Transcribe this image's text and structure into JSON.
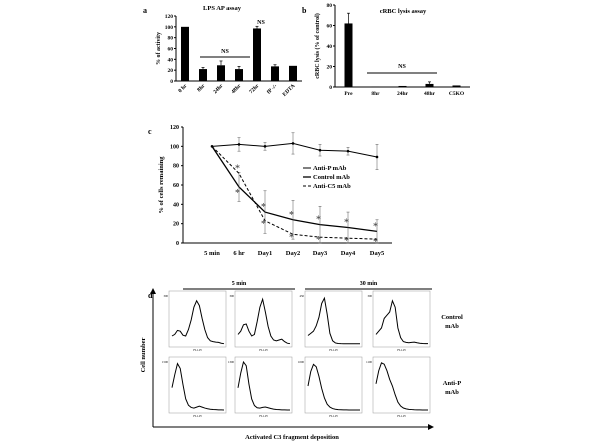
{
  "chart_data": [
    {
      "panel": "a",
      "type": "bar",
      "title": "LPS AP assay",
      "ylabel": "% of activity",
      "ylim": [
        0,
        120
      ],
      "yticks": [
        0,
        20,
        40,
        60,
        80,
        100,
        120
      ],
      "categories": [
        "0 hr",
        "8hr",
        "24hr",
        "48hr",
        "72hr",
        "fP -/-",
        "EDTA"
      ],
      "values": [
        100,
        22,
        29,
        22,
        97,
        27,
        28
      ],
      "errors": [
        0,
        3,
        8,
        5,
        4,
        3,
        0
      ],
      "annotations": [
        "NS",
        "NS"
      ]
    },
    {
      "panel": "b",
      "type": "bar",
      "title": "cRBC lysis assay",
      "ylabel": "cRBC lysis (% of control)",
      "ylim": [
        0,
        80
      ],
      "yticks": [
        0,
        20,
        40,
        60,
        80
      ],
      "categories": [
        "Pre",
        "8hr",
        "24hr",
        "48hr",
        "C5KO"
      ],
      "values": [
        62,
        0.5,
        1,
        3,
        1.5
      ],
      "errors": [
        10,
        0,
        0,
        2,
        0
      ],
      "annotations": [
        "NS"
      ]
    },
    {
      "panel": "c",
      "type": "line",
      "ylabel": "% of cells remaining",
      "ylim": [
        0,
        120
      ],
      "yticks": [
        0,
        20,
        40,
        60,
        80,
        100,
        120
      ],
      "categories": [
        "5 min",
        "6 hr",
        "Day1",
        "Day2",
        "Day3",
        "Day4",
        "Day5"
      ],
      "series": [
        {
          "name": "Anti-P mAb",
          "values": [
            100,
            102,
            100,
            103,
            96,
            95,
            89
          ],
          "errors": [
            0,
            7,
            4,
            11,
            6,
            4,
            13
          ]
        },
        {
          "name": "Control mAb",
          "values": [
            100,
            58,
            32,
            24,
            19,
            16,
            12
          ],
          "errors": [
            0,
            15,
            22,
            20,
            19,
            16,
            12
          ]
        },
        {
          "name": "Anti-C5 mAb",
          "values": [
            100,
            72,
            23,
            9,
            6,
            5,
            4
          ],
          "errors": [
            0,
            0,
            0,
            0,
            0,
            0,
            0
          ]
        }
      ],
      "significance_marker": "*",
      "legend": "right"
    },
    {
      "panel": "d",
      "type": "histogram",
      "xlabel": "Activated  C3 fragment deposition",
      "ylabel": "Cell number",
      "column_groups": [
        "5 min",
        "30 min"
      ],
      "row_labels": [
        [
          "Control",
          "mAb"
        ],
        [
          "Anti-P",
          "mAb"
        ]
      ],
      "axis_label": "FL1-H",
      "panels": [
        {
          "ymax": 300,
          "curve": [
            50,
            60,
            85,
            80,
            55,
            50,
            90,
            150,
            230,
            270,
            240,
            160,
            90,
            40,
            20,
            15,
            12,
            10,
            5,
            2
          ]
        },
        {
          "ymax": 300,
          "curve": [
            60,
            80,
            120,
            125,
            80,
            50,
            60,
            140,
            230,
            280,
            200,
            110,
            50,
            25,
            20,
            25,
            30,
            15,
            5,
            2
          ]
        },
        {
          "ymax": 450,
          "curve": [
            80,
            100,
            120,
            170,
            250,
            380,
            430,
            280,
            100,
            30,
            10,
            5,
            3,
            2,
            2,
            2,
            2,
            2,
            2,
            2
          ]
        },
        {
          "ymax": 300,
          "curve": [
            60,
            80,
            100,
            160,
            180,
            200,
            270,
            230,
            100,
            40,
            15,
            10,
            8,
            10,
            12,
            8,
            5,
            3,
            2,
            2
          ]
        },
        {
          "ymax": 1500,
          "curve": [
            700,
            1100,
            1450,
            1300,
            800,
            350,
            150,
            80,
            60,
            90,
            120,
            90,
            60,
            40,
            25,
            15,
            10,
            5,
            2,
            0
          ]
        },
        {
          "ymax": 1300,
          "curve": [
            600,
            1000,
            1300,
            1200,
            700,
            300,
            120,
            60,
            50,
            70,
            80,
            60,
            40,
            25,
            15,
            10,
            5,
            3,
            1,
            0
          ]
        },
        {
          "ymax": 1000,
          "curve": [
            500,
            800,
            950,
            900,
            700,
            450,
            250,
            120,
            60,
            30,
            15,
            8,
            5,
            3,
            2,
            1,
            1,
            0,
            0,
            0
          ]
        },
        {
          "ymax": 1100,
          "curve": [
            600,
            900,
            1080,
            1050,
            900,
            700,
            550,
            350,
            180,
            90,
            45,
            25,
            15,
            10,
            5,
            3,
            2,
            1,
            0,
            0
          ]
        }
      ]
    }
  ],
  "labels": {
    "a": "a",
    "b": "b",
    "c": "c",
    "d": "d"
  }
}
